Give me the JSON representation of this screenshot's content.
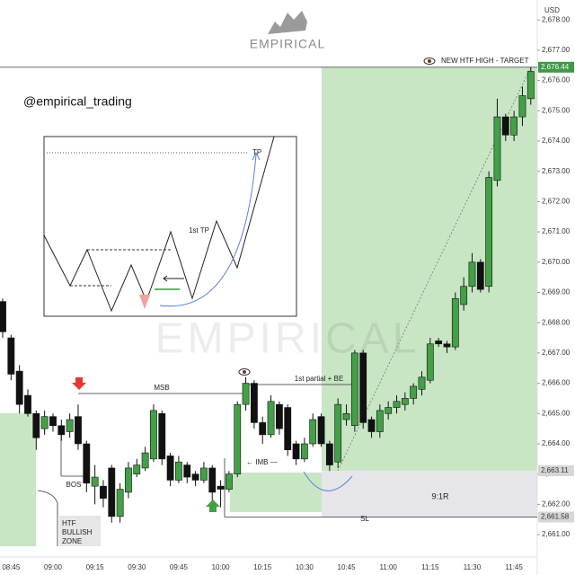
{
  "chart_data": {
    "type": "candlestick",
    "currency_label": "USD",
    "handle": "@empirical_trading",
    "watermark": "EMPIRICAL",
    "categories": [
      null,
      "08:45",
      null,
      null,
      null,
      null,
      "09:00",
      null,
      null,
      null,
      null,
      "09:15",
      null,
      null,
      null,
      null,
      "09:30",
      null,
      null,
      null,
      null,
      "09:45",
      null,
      null,
      null,
      null,
      "10:00",
      null,
      null,
      null,
      null,
      "10:15",
      null,
      null,
      null,
      null,
      "10:30",
      null,
      null,
      null,
      null,
      "10:45",
      null,
      null,
      null,
      null,
      "11:00",
      null,
      null,
      null,
      null,
      "11:15",
      null,
      null,
      null,
      null,
      "11:30",
      null,
      null,
      null,
      null,
      "11:45",
      null,
      null
    ],
    "open": [
      2668.7,
      2667.5,
      2666.4,
      2665.6,
      2665.0,
      2664.5,
      2664.9,
      2664.6,
      2664.4,
      2664.9,
      2664.0,
      2662.6,
      2662.6,
      2663.2,
      2661.6,
      2662.4,
      2663.0,
      2663.2,
      2663.5,
      2665.0,
      2663.6,
      2662.8,
      2663.3,
      2663.0,
      2662.8,
      2663.2,
      2662.6,
      2662.5,
      2663.0,
      2665.3,
      2666.0,
      2664.7,
      2664.3,
      2665.3,
      2665.2,
      2664.0,
      2663.5,
      2664.0,
      2664.9,
      2664.0,
      2663.4,
      2664.8,
      2664.6,
      2667.0,
      2664.8,
      2664.4,
      2665.0,
      2665.2,
      2665.3,
      2665.5,
      2665.8,
      2666.1,
      2667.4,
      2667.3,
      2667.2,
      2668.6,
      2669.2,
      2670.0,
      2669.2,
      2672.7,
      2674.8,
      2674.2,
      2674.8,
      2675.4
    ],
    "high": [
      2668.8,
      2667.6,
      2666.6,
      2665.8,
      2665.1,
      2665.1,
      2665.0,
      2664.8,
      2665.0,
      2665.3,
      2664.1,
      2663.3,
      2662.8,
      2663.3,
      2662.7,
      2663.4,
      2663.5,
      2663.9,
      2665.3,
      2665.1,
      2663.7,
      2663.6,
      2663.4,
      2663.1,
      2663.4,
      2663.3,
      2662.8,
      2663.1,
      2665.4,
      2666.2,
      2666.1,
      2664.9,
      2665.6,
      2665.4,
      2665.3,
      2664.1,
      2664.2,
      2665.0,
      2665.0,
      2664.1,
      2665.5,
      2665.3,
      2667.1,
      2667.1,
      2664.9,
      2665.3,
      2665.4,
      2665.6,
      2665.7,
      2666.0,
      2666.4,
      2667.5,
      2667.5,
      2667.4,
      2669.0,
      2669.5,
      2670.3,
      2670.1,
      2673.0,
      2675.4,
      2674.9,
      2675.0,
      2675.8,
      2676.44
    ],
    "low": [
      2667.5,
      2666.1,
      2665.0,
      2664.9,
      2663.8,
      2664.3,
      2664.4,
      2664.1,
      2664.2,
      2663.8,
      2662.4,
      2662.0,
      2661.9,
      2661.4,
      2661.4,
      2662.2,
      2662.9,
      2663.1,
      2663.4,
      2663.3,
      2662.6,
      2662.7,
      2662.7,
      2662.6,
      2662.7,
      2662.0,
      2661.9,
      2662.4,
      2662.9,
      2665.1,
      2664.5,
      2664.0,
      2664.2,
      2664.3,
      2663.6,
      2663.3,
      2663.4,
      2663.9,
      2663.9,
      2663.1,
      2663.2,
      2664.6,
      2664.4,
      2664.5,
      2664.2,
      2664.2,
      2664.8,
      2665.0,
      2665.1,
      2665.3,
      2665.6,
      2666.0,
      2667.2,
      2667.0,
      2667.1,
      2668.4,
      2669.0,
      2669.0,
      2669.0,
      2672.5,
      2674.0,
      2674.0,
      2674.5,
      2675.2
    ],
    "close": [
      2667.7,
      2666.3,
      2665.3,
      2665.0,
      2664.2,
      2664.9,
      2664.6,
      2664.3,
      2664.8,
      2664.0,
      2662.7,
      2662.9,
      2662.2,
      2661.6,
      2662.5,
      2663.2,
      2663.3,
      2663.7,
      2665.1,
      2663.5,
      2662.8,
      2663.4,
      2662.9,
      2662.8,
      2663.2,
      2662.4,
      2662.5,
      2663.0,
      2665.3,
      2666.0,
      2664.7,
      2664.3,
      2665.4,
      2664.5,
      2663.8,
      2663.5,
      2664.0,
      2664.8,
      2664.0,
      2663.3,
      2665.3,
      2665.0,
      2667.0,
      2664.7,
      2664.4,
      2665.1,
      2665.2,
      2665.4,
      2665.5,
      2665.9,
      2666.2,
      2667.3,
      2667.3,
      2667.2,
      2668.8,
      2669.2,
      2670.0,
      2669.1,
      2672.8,
      2674.8,
      2674.2,
      2674.8,
      2675.5,
      2676.3
    ],
    "up_color": "#43a047",
    "down_color": "#111111",
    "ylim": [
      2660.26,
      2678.66
    ],
    "yticks": [
      {
        "value": 2661,
        "label": "2,661.00"
      },
      {
        "value": 2662,
        "label": "2,662.00"
      },
      {
        "value": 2663,
        "label": "2,663.00"
      },
      {
        "value": 2664,
        "label": "2,664.00"
      },
      {
        "value": 2665,
        "label": "2,665.00"
      },
      {
        "value": 2666,
        "label": "2,666.00"
      },
      {
        "value": 2667,
        "label": "2,667.00"
      },
      {
        "value": 2668,
        "label": "2,668.00"
      },
      {
        "value": 2669,
        "label": "2,669.00"
      },
      {
        "value": 2670,
        "label": "2,670.00"
      },
      {
        "value": 2671,
        "label": "2,671.00"
      },
      {
        "value": 2672,
        "label": "2,672.00"
      },
      {
        "value": 2673,
        "label": "2,673.00"
      },
      {
        "value": 2674,
        "label": "2,674.00"
      },
      {
        "value": 2675,
        "label": "2,675.00"
      },
      {
        "value": 2676,
        "label": "2,676.00"
      },
      {
        "value": 2677,
        "label": "2,677.00"
      },
      {
        "value": 2678,
        "label": "2,678.00"
      }
    ],
    "price_markers": [
      {
        "value": 2676.44,
        "label": "2,676.44",
        "color": "#3d9a45"
      },
      {
        "value": 2663.11,
        "label": "2,663.11",
        "color": "#d6d6d6"
      },
      {
        "value": 2661.58,
        "label": "2,661.58",
        "color": "#d6d6d6"
      }
    ],
    "annotations": {
      "target": "NEW HTF HIGH - TARGET",
      "msb": "MSB",
      "partial": "1st partial + BE",
      "imb": "← IMB —",
      "bos": "BOS",
      "zone": [
        "HTF",
        "BULLISH",
        "ZONE"
      ],
      "sl": "SL",
      "rr": "9:1R"
    },
    "inset": {
      "tp": "TP",
      "first_tp": "1st TP"
    }
  }
}
